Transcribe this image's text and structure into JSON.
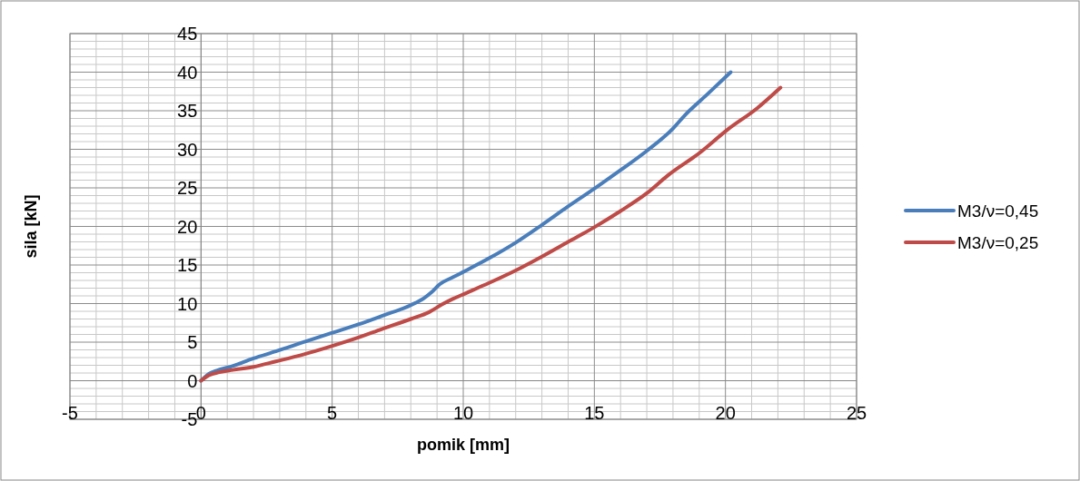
{
  "chart_data": {
    "type": "line",
    "xlabel": "pomik [mm]",
    "ylabel": "sila [kN]",
    "xlim": [
      -5,
      25
    ],
    "xticks": [
      -5,
      0,
      5,
      10,
      15,
      20,
      25
    ],
    "ylim": [
      -5,
      45
    ],
    "yticks": [
      -5,
      0,
      5,
      10,
      15,
      20,
      25,
      30,
      35,
      40,
      45
    ],
    "grid": true,
    "legend": "right",
    "marker": "none",
    "line_style": "solid",
    "series": [
      {
        "name": "M3/ν=0,45",
        "color": "#4a7ebb",
        "x": [
          0,
          0.3,
          0.6,
          1.2,
          2,
          2.85,
          4,
          4.9,
          6,
          6.9,
          8,
          8.5,
          8.8,
          9.1,
          9.6,
          10,
          11,
          12,
          13,
          14,
          15,
          16,
          17,
          18,
          18.45,
          19.3,
          20.2
        ],
        "values": [
          0,
          0.9,
          1.3,
          1.9,
          2.9,
          3.8,
          5.1,
          6.1,
          7.3,
          8.4,
          9.8,
          10.7,
          11.5,
          12.5,
          13.4,
          14.1,
          15.9,
          17.9,
          20.2,
          22.6,
          24.9,
          27.3,
          29.8,
          32.7,
          34.4,
          37.1,
          40
        ]
      },
      {
        "name": "M3/ν=0,25",
        "color": "#be4b48",
        "x": [
          0,
          0.3,
          0.7,
          1.2,
          2,
          2.85,
          3.9,
          4.9,
          6,
          6.9,
          8,
          8.7,
          9.2,
          9.6,
          10,
          11,
          12,
          13,
          14,
          15,
          16,
          17,
          17.8,
          19,
          20.1,
          21.2,
          22.1
        ],
        "values": [
          0,
          0.7,
          1.1,
          1.4,
          1.8,
          2.5,
          3.4,
          4.4,
          5.6,
          6.7,
          8.0,
          8.9,
          9.9,
          10.6,
          11.2,
          12.7,
          14.3,
          16.1,
          18.0,
          19.9,
          22.0,
          24.3,
          26.6,
          29.5,
          32.6,
          35.3,
          38
        ]
      }
    ]
  }
}
